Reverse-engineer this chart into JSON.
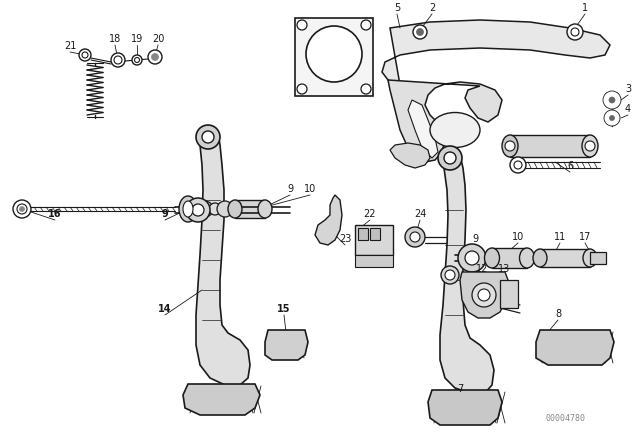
{
  "bg_color": "#ffffff",
  "lc": "#1a1a1a",
  "watermark": "00004780",
  "figsize": [
    6.4,
    4.48
  ],
  "dpi": 100
}
